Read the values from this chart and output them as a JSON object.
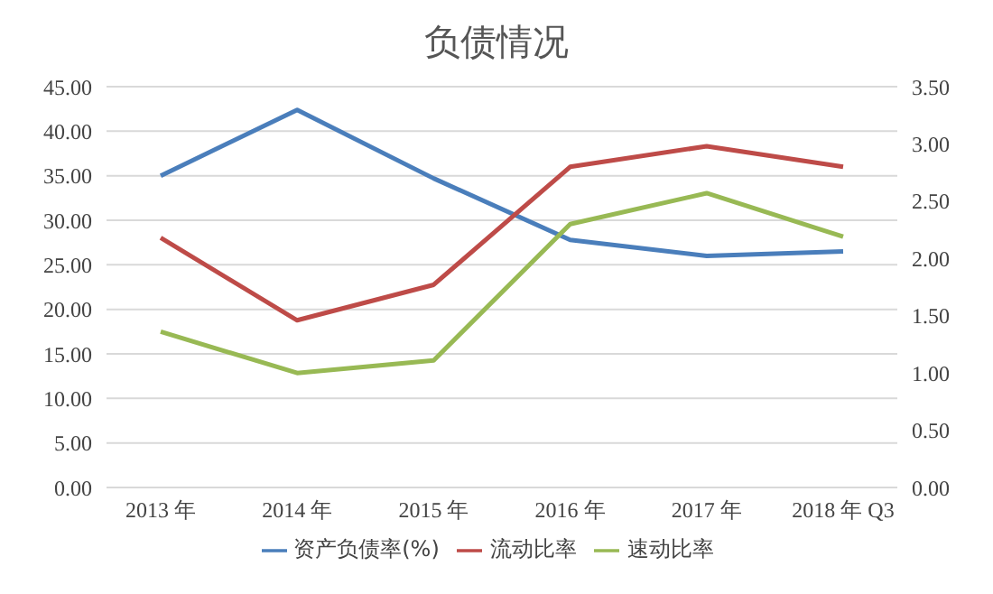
{
  "chart_data": {
    "type": "line",
    "title": "负债情况",
    "categories": [
      "2013 年",
      "2014 年",
      "2015 年",
      "2016 年",
      "2017 年",
      "2018 年 Q3"
    ],
    "series": [
      {
        "name": "资产负债率(%)",
        "color": "#4a7ebb",
        "values": [
          35.0,
          42.4,
          34.7,
          27.8,
          26.0,
          26.5
        ]
      },
      {
        "name": "流动比率",
        "color": "#be4b48",
        "axis": "y2",
        "values": [
          2.18,
          1.46,
          1.77,
          2.8,
          2.98,
          2.8
        ]
      },
      {
        "name": "速动比率",
        "color": "#98b954",
        "axis": "y2",
        "values": [
          1.36,
          1.0,
          1.11,
          2.3,
          2.57,
          2.19
        ]
      }
    ],
    "ylim": [
      0,
      45
    ],
    "yticks": [
      {
        "value": 0,
        "label": "0.00"
      },
      {
        "value": 5,
        "label": "5.00"
      },
      {
        "value": 10,
        "label": "10.00"
      },
      {
        "value": 15,
        "label": "15.00"
      },
      {
        "value": 20,
        "label": "20.00"
      },
      {
        "value": 25,
        "label": "25.00"
      },
      {
        "value": 30,
        "label": "30.00"
      },
      {
        "value": 35,
        "label": "35.00"
      },
      {
        "value": 40,
        "label": "40.00"
      },
      {
        "value": 45,
        "label": "45.00"
      }
    ],
    "y2lim": [
      0,
      3.5
    ],
    "y2ticks": [
      {
        "value": 0,
        "label": "0.00"
      },
      {
        "value": 0.5,
        "label": "0.50"
      },
      {
        "value": 1,
        "label": "1.00"
      },
      {
        "value": 1.5,
        "label": "1.50"
      },
      {
        "value": 2,
        "label": "2.00"
      },
      {
        "value": 2.5,
        "label": "2.50"
      },
      {
        "value": 3,
        "label": "3.00"
      },
      {
        "value": 3.5,
        "label": "3.50"
      }
    ],
    "grid": "y",
    "legend": "bottom",
    "marker": "none",
    "line_style": "solid"
  }
}
